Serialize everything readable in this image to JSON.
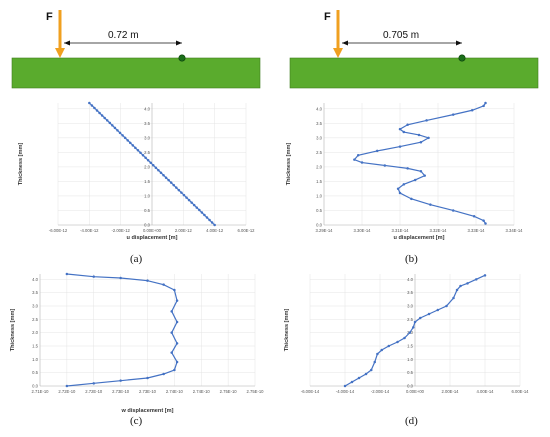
{
  "beam_diagrams": [
    {
      "id": "a",
      "force_label": "F",
      "distance_label": "0.72 m",
      "beam_color": "#5aab2d",
      "arrow_color": "#f0a020",
      "sensor_color": "#1a6e1a"
    },
    {
      "id": "b",
      "force_label": "F",
      "distance_label": "0.705 m",
      "beam_color": "#5aab2d",
      "arrow_color": "#f0a020",
      "sensor_color": "#1a6e1a"
    }
  ],
  "panel_labels": [
    "(a)",
    "(b)",
    "(c)",
    "(d)"
  ],
  "chart_data": [
    {
      "type": "line",
      "panel": "a",
      "xlabel": "u displacement [m]",
      "ylabel": "Thickness [mm]",
      "x_tick_labels": [
        "-6.00E-12",
        "-4.00E-12",
        "-2.00E-12",
        "0.00E+00",
        "2.00E-12",
        "4.00E-12",
        "6.00E-12"
      ],
      "y_tick_labels": [
        "0.0",
        "0.5",
        "1.0",
        "1.5",
        "2.0",
        "2.5",
        "3.0",
        "3.5",
        "4.0"
      ],
      "xlim": [
        -6e-12,
        6e-12
      ],
      "ylim": [
        0,
        4.2
      ],
      "series": [
        {
          "color": "#4472c4",
          "x": [
            -4e-12,
            4e-12
          ],
          "y": [
            4.2,
            0
          ],
          "points": 50
        }
      ]
    },
    {
      "type": "line",
      "panel": "b",
      "xlabel": "u displacement [m]",
      "ylabel": "Thickness [mm]",
      "x_tick_labels": [
        "3.29E-14",
        "3.30E-14",
        "3.31E-14",
        "3.32E-14",
        "3.33E-14",
        "3.34E-14"
      ],
      "y_tick_labels": [
        "0.0",
        "0.5",
        "1.0",
        "1.5",
        "2.0",
        "2.5",
        "3.0",
        "3.5",
        "4.0"
      ],
      "xlim": [
        3.29e-14,
        3.34e-14
      ],
      "ylim": [
        0,
        4.2
      ],
      "series": [
        {
          "color": "#4472c4",
          "x": [
            3.3325e-14,
            3.332e-14,
            3.3295e-14,
            3.324e-14,
            3.318e-14,
            3.313e-14,
            3.31e-14,
            3.3095e-14,
            3.311e-14,
            3.314e-14,
            3.3165e-14,
            3.3155e-14,
            3.312e-14,
            3.306e-14,
            3.3e-14,
            3.298e-14,
            3.299e-14,
            3.304e-14,
            3.31e-14,
            3.3155e-14,
            3.3175e-14,
            3.315e-14,
            3.311e-14,
            3.31e-14,
            3.312e-14,
            3.317e-14,
            3.324e-14,
            3.329e-14,
            3.332e-14,
            3.3325e-14
          ],
          "y": [
            0.05,
            0.15,
            0.3,
            0.5,
            0.7,
            0.9,
            1.1,
            1.25,
            1.4,
            1.55,
            1.7,
            1.85,
            1.95,
            2.05,
            2.15,
            2.25,
            2.4,
            2.55,
            2.7,
            2.85,
            3.0,
            3.1,
            3.2,
            3.3,
            3.45,
            3.6,
            3.8,
            3.95,
            4.1,
            4.2
          ]
        }
      ]
    },
    {
      "type": "line",
      "panel": "c",
      "xlabel": "w displacement [m]",
      "ylabel": "Thickness [mm]",
      "x_tick_labels": [
        "2.71E-10",
        "2.72E-10",
        "2.72E-10",
        "2.73E-10",
        "2.73E-10",
        "2.74E-10",
        "2.74E-10",
        "2.75E-10",
        "2.75E-10"
      ],
      "y_tick_labels": [
        "0.0",
        "0.5",
        "1.0",
        "1.5",
        "2.0",
        "2.5",
        "3.0",
        "3.5",
        "4.0"
      ],
      "xlim": [
        2.715e-10,
        2.755e-10
      ],
      "ylim": [
        0,
        4.2
      ],
      "series": [
        {
          "color": "#4472c4",
          "x": [
            2.72e-10,
            2.725e-10,
            2.73e-10,
            2.735e-10,
            2.738e-10,
            2.74e-10,
            2.7405e-10,
            2.7395e-10,
            2.7405e-10,
            2.7395e-10,
            2.7405e-10,
            2.7395e-10,
            2.7405e-10,
            2.74e-10,
            2.738e-10,
            2.735e-10,
            2.73e-10,
            2.725e-10,
            2.72e-10
          ],
          "y": [
            0.0,
            0.1,
            0.2,
            0.3,
            0.45,
            0.6,
            0.9,
            1.25,
            1.6,
            2.0,
            2.4,
            2.8,
            3.2,
            3.6,
            3.8,
            3.95,
            4.05,
            4.1,
            4.2
          ]
        }
      ]
    },
    {
      "type": "line",
      "panel": "d",
      "xlabel": "",
      "ylabel": "Thickness [mm]",
      "x_tick_labels": [
        "-6.00E-14",
        "-4.00E-14",
        "-2.00E-14",
        "0.00E+00",
        "2.00E-14",
        "4.00E-14",
        "6.00E-14"
      ],
      "y_tick_labels": [
        "0.0",
        "0.5",
        "1.0",
        "1.5",
        "2.0",
        "2.5",
        "3.0",
        "3.5",
        "4.0"
      ],
      "xlim": [
        -6e-14,
        6e-14
      ],
      "ylim": [
        0,
        4.2
      ],
      "series": [
        {
          "color": "#4472c4",
          "x": [
            -4e-14,
            -3.6e-14,
            -3.2e-14,
            -2.8e-14,
            -2.5e-14,
            -2.3e-14,
            -2.15e-14,
            -1.9e-14,
            -1.5e-14,
            -1e-14,
            -6e-15,
            -3e-15,
            -1e-15,
            0.0,
            3e-15,
            8e-15,
            1.3e-14,
            1.8e-14,
            2.2e-14,
            2.4e-14,
            2.6e-14,
            3e-14,
            3.5e-14,
            4e-14
          ],
          "y": [
            0.0,
            0.15,
            0.3,
            0.45,
            0.6,
            0.9,
            1.2,
            1.35,
            1.5,
            1.65,
            1.8,
            2.0,
            2.2,
            2.4,
            2.55,
            2.7,
            2.85,
            3.0,
            3.3,
            3.6,
            3.75,
            3.85,
            4.0,
            4.15
          ]
        }
      ]
    }
  ]
}
